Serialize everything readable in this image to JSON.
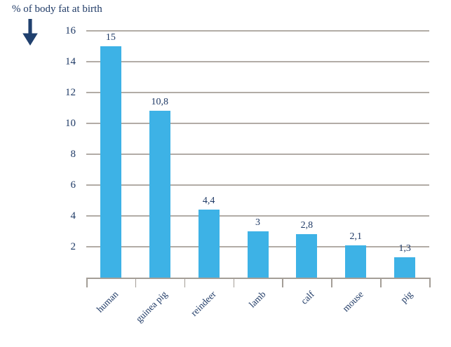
{
  "header": {
    "title": "% of body fat at birth"
  },
  "icons": {
    "down_arrow": "down-arrow"
  },
  "chart_data": {
    "type": "bar",
    "title": "% of body fat at birth",
    "categories": [
      "human",
      "guinea pig",
      "reindeer",
      "lamb",
      "calf",
      "mouse",
      "pig"
    ],
    "values": [
      15,
      10.8,
      4.4,
      3,
      2.8,
      2.1,
      1.3
    ],
    "value_labels": [
      "15",
      "10,8",
      "4,4",
      "3",
      "2,8",
      "2,1",
      "1,3"
    ],
    "xlabel": "",
    "ylabel": "",
    "yticks": [
      2,
      4,
      6,
      8,
      10,
      12,
      14,
      16
    ],
    "ylim": [
      0,
      16
    ],
    "grid": true,
    "legend": false,
    "decimal_separator": ",",
    "colors": {
      "bar": "#3db2e6",
      "text": "#1f3a66",
      "gridline": "#a49e97",
      "axis": "#a49e97"
    }
  }
}
